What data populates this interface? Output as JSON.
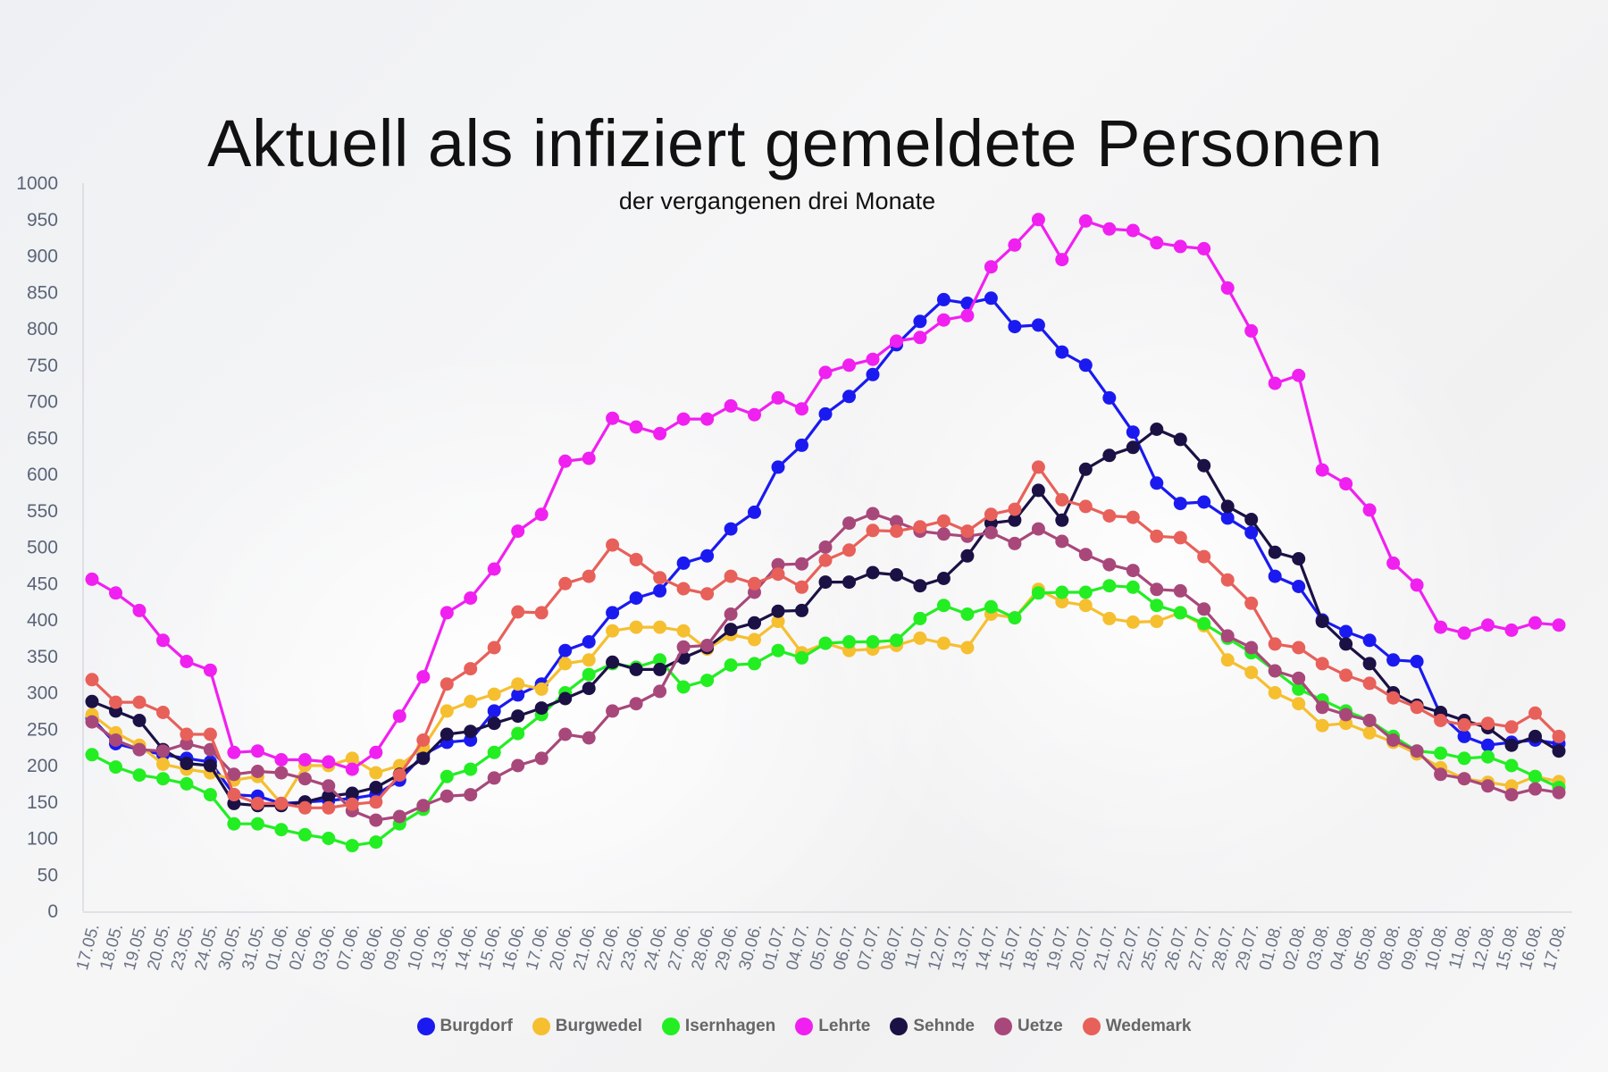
{
  "chart_data": {
    "type": "line",
    "title": "Aktuell als infiziert gemeldete Personen",
    "subtitle": "der vergangenen drei Monate",
    "xlabel": "",
    "ylabel": "",
    "ylim": [
      0,
      1000
    ],
    "yticks": [
      0,
      50,
      100,
      150,
      200,
      250,
      300,
      350,
      400,
      450,
      500,
      550,
      600,
      650,
      700,
      750,
      800,
      850,
      900,
      950,
      1000
    ],
    "grid": false,
    "legend_position": "bottom",
    "x_tick_labels": [
      "17.05.",
      "18.05.",
      "19.05.",
      "20.05.",
      "23.05.",
      "24.05.",
      "30.05.",
      "31.05.",
      "01.06.",
      "02.06.",
      "03.06.",
      "07.06.",
      "08.06.",
      "09.06.",
      "10.06.",
      "13.06.",
      "14.06.",
      "15.06.",
      "16.06.",
      "17.06.",
      "20.06.",
      "21.06.",
      "22.06.",
      "23.06.",
      "24.06.",
      "27.06.",
      "28.06.",
      "29.06.",
      "30.06.",
      "01.07.",
      "04.07.",
      "05.07.",
      "06.07.",
      "07.07.",
      "08.07.",
      "11.07.",
      "12.07.",
      "13.07.",
      "14.07.",
      "15.07.",
      "18.07.",
      "19.07.",
      "20.07.",
      "21.07.",
      "22.07.",
      "25.07.",
      "26.07.",
      "27.07.",
      "28.07.",
      "29.07.",
      "01.08.",
      "02.08.",
      "03.08.",
      "04.08.",
      "05.08.",
      "08.08.",
      "09.08.",
      "10.08.",
      "11.08.",
      "12.08.",
      "15.08.",
      "16.08.",
      "17.08."
    ],
    "series": [
      {
        "name": "Burgdorf",
        "color": "#1a1af0",
        "values": [
          265,
          230,
          222,
          215,
          210,
          205,
          160,
          158,
          148,
          150,
          152,
          155,
          160,
          180,
          215,
          232,
          235,
          275,
          297,
          312,
          358,
          370,
          410,
          430,
          440,
          478,
          488,
          525,
          548,
          610,
          640,
          683,
          707,
          737,
          778,
          810,
          840,
          835,
          842,
          803,
          805,
          768,
          750,
          705,
          658,
          588,
          560,
          562,
          540,
          520,
          460,
          446,
          400,
          384,
          372,
          345,
          343,
          270,
          240,
          228,
          232,
          235,
          230
        ]
      },
      {
        "name": "Burgwedel",
        "color": "#f5bf30",
        "values": [
          270,
          245,
          228,
          202,
          195,
          190,
          180,
          185,
          148,
          200,
          200,
          210,
          190,
          200,
          225,
          275,
          288,
          298,
          312,
          305,
          340,
          345,
          385,
          390,
          390,
          385,
          360,
          380,
          373,
          398,
          355,
          368,
          358,
          360,
          365,
          375,
          368,
          362,
          408,
          403,
          442,
          425,
          420,
          402,
          397,
          398,
          410,
          392,
          345,
          328,
          300,
          285,
          255,
          258,
          245,
          232,
          216,
          197,
          182,
          177,
          172,
          185,
          178
        ]
      },
      {
        "name": "Isernhagen",
        "color": "#22ee22",
        "values": [
          215,
          198,
          187,
          182,
          175,
          160,
          120,
          120,
          112,
          105,
          100,
          90,
          95,
          120,
          140,
          185,
          195,
          218,
          244,
          270,
          300,
          325,
          340,
          335,
          345,
          308,
          317,
          338,
          340,
          358,
          348,
          368,
          370,
          370,
          372,
          402,
          420,
          408,
          418,
          403,
          437,
          438,
          438,
          447,
          445,
          420,
          410,
          395,
          375,
          355,
          330,
          305,
          290,
          275,
          262,
          240,
          220,
          217,
          210,
          212,
          200,
          185,
          170
        ]
      },
      {
        "name": "Lehrte",
        "color": "#f020f0",
        "values": [
          456,
          437,
          413,
          372,
          343,
          331,
          218,
          220,
          208,
          208,
          205,
          195,
          218,
          268,
          322,
          410,
          430,
          470,
          522,
          545,
          618,
          622,
          677,
          665,
          656,
          676,
          676,
          694,
          682,
          705,
          690,
          740,
          750,
          758,
          783,
          788,
          812,
          818,
          885,
          915,
          950,
          895,
          948,
          937,
          935,
          918,
          913,
          910,
          856,
          797,
          725,
          736,
          606,
          587,
          551,
          478,
          448,
          390,
          382,
          393,
          386,
          396,
          393
        ]
      },
      {
        "name": "Sehnde",
        "color": "#1b1145",
        "values": [
          288,
          275,
          262,
          222,
          203,
          200,
          148,
          145,
          145,
          150,
          158,
          162,
          170,
          188,
          210,
          243,
          247,
          258,
          268,
          279,
          292,
          306,
          342,
          332,
          332,
          348,
          362,
          387,
          396,
          412,
          413,
          452,
          452,
          465,
          462,
          447,
          457,
          488,
          533,
          537,
          578,
          537,
          607,
          626,
          637,
          662,
          648,
          612,
          556,
          538,
          493,
          484,
          398,
          367,
          340,
          300,
          283,
          273,
          262,
          252,
          228,
          240,
          220
        ]
      },
      {
        "name": "Uetze",
        "color": "#a8487a",
        "values": [
          260,
          235,
          222,
          220,
          230,
          222,
          188,
          192,
          190,
          182,
          172,
          138,
          125,
          130,
          145,
          158,
          160,
          183,
          200,
          210,
          243,
          238,
          275,
          285,
          302,
          363,
          365,
          408,
          438,
          476,
          477,
          500,
          533,
          546,
          535,
          522,
          518,
          515,
          520,
          505,
          525,
          508,
          490,
          476,
          468,
          442,
          440,
          415,
          378,
          362,
          330,
          320,
          280,
          270,
          262,
          235,
          220,
          188,
          182,
          172,
          160,
          168,
          163
        ]
      },
      {
        "name": "Wedemark",
        "color": "#e8605a",
        "values": [
          318,
          287,
          287,
          273,
          243,
          243,
          160,
          148,
          148,
          142,
          142,
          147,
          150,
          187,
          235,
          312,
          333,
          362,
          411,
          410,
          450,
          460,
          503,
          483,
          458,
          443,
          436,
          460,
          450,
          463,
          445,
          482,
          496,
          523,
          522,
          528,
          536,
          522,
          545,
          552,
          610,
          565,
          556,
          543,
          541,
          515,
          513,
          487,
          455,
          423,
          367,
          362,
          340,
          324,
          313,
          293,
          280,
          262,
          256,
          258,
          253,
          272,
          240
        ]
      }
    ]
  }
}
